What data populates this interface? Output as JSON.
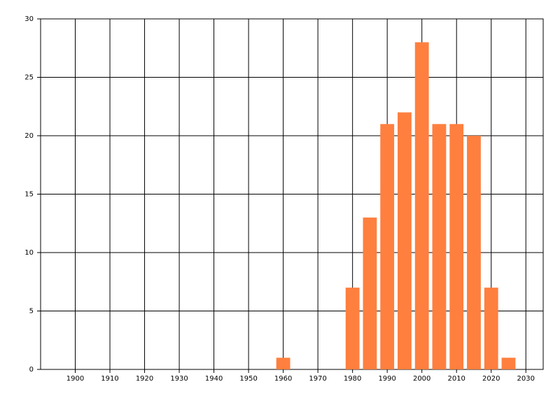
{
  "chart_data": {
    "type": "bar",
    "x": [
      1960,
      1980,
      1985,
      1990,
      1995,
      2000,
      2005,
      2010,
      2015,
      2020,
      2025
    ],
    "values": [
      1,
      7,
      13,
      21,
      22,
      28,
      21,
      21,
      20,
      7,
      1
    ],
    "color": "#ff7f3f",
    "xlim": [
      1890,
      2035
    ],
    "xticks": [
      1900,
      1910,
      1920,
      1930,
      1940,
      1950,
      1960,
      1970,
      1980,
      1990,
      2000,
      2010,
      2020,
      2030
    ],
    "ylim": [
      0,
      30
    ],
    "yticks": [
      0,
      5,
      10,
      15,
      20,
      25,
      30
    ],
    "grid": true
  }
}
